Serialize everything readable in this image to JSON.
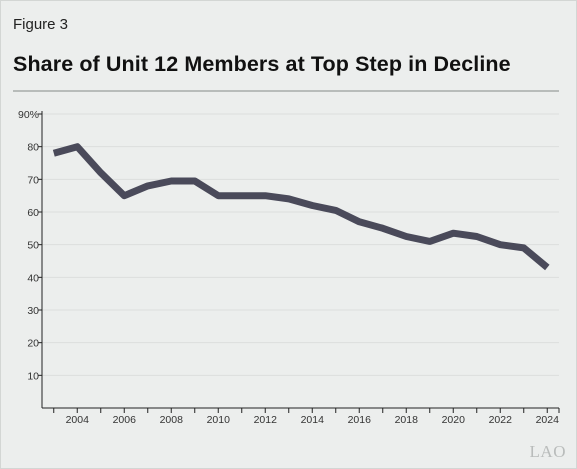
{
  "figure_label": "Figure 3",
  "title": "Share of Unit 12 Members at Top Step in Decline",
  "logo_text": "LAO",
  "colors": {
    "line": "#4a4a5a",
    "grid": "#dcdedd",
    "axis": "#222222",
    "background": "#eceeed"
  },
  "chart_data": {
    "type": "line",
    "title": "Share of Unit 12 Members at Top Step in Decline",
    "xlabel": "",
    "ylabel": "",
    "x": [
      2003,
      2004,
      2005,
      2006,
      2007,
      2008,
      2009,
      2010,
      2011,
      2012,
      2013,
      2014,
      2015,
      2016,
      2017,
      2018,
      2019,
      2020,
      2021,
      2022,
      2023,
      2024
    ],
    "series": [
      {
        "values": [
          78,
          80,
          72,
          65,
          68,
          69.5,
          69.5,
          65,
          65,
          65,
          64,
          62,
          60.5,
          57,
          55,
          52.5,
          51,
          53.5,
          52.5,
          50,
          49,
          43
        ]
      }
    ],
    "ylim": [
      0,
      90
    ],
    "yticks": [
      10,
      20,
      30,
      40,
      50,
      60,
      70,
      80,
      90
    ],
    "ytick_labels": [
      "10",
      "20",
      "30",
      "40",
      "50",
      "60",
      "70",
      "80",
      "90%"
    ],
    "xlim": [
      2002.5,
      2024.5
    ],
    "xticks": [
      2004,
      2006,
      2008,
      2010,
      2012,
      2014,
      2016,
      2018,
      2020,
      2022,
      2024
    ],
    "xtick_labels": [
      "2004",
      "2006",
      "2008",
      "2010",
      "2012",
      "2014",
      "2016",
      "2018",
      "2020",
      "2022",
      "2024"
    ],
    "grid": true,
    "legend": "none"
  }
}
